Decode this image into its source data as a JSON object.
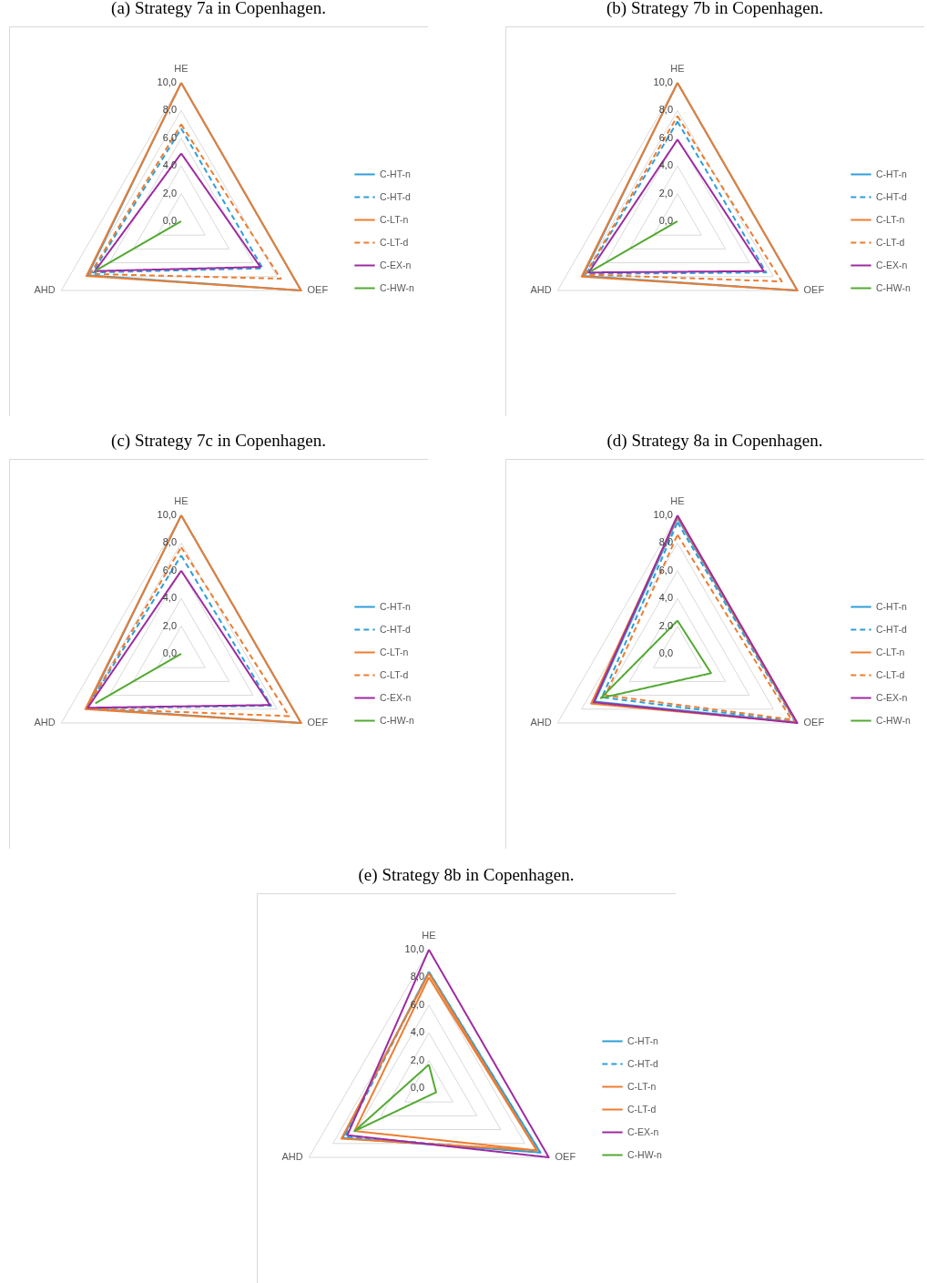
{
  "chart_data": [
    {
      "type": "radar",
      "title": "(a) Strategy 7a in Copenhagen.",
      "categories": [
        "HE",
        "OEF",
        "AHD"
      ],
      "ylim": [
        0,
        10
      ],
      "yticks": [
        {
          "value": 0,
          "label": "0,0"
        },
        {
          "value": 2,
          "label": "2,0"
        },
        {
          "value": 4,
          "label": "4,0"
        },
        {
          "value": 6,
          "label": "6,0"
        },
        {
          "value": 8,
          "label": "8,0"
        },
        {
          "value": 10,
          "label": "10,0"
        }
      ],
      "grid": true,
      "legend": "right",
      "series": [
        {
          "name": "C-HT-n",
          "color": "#2e9fd8",
          "line_style": "solid",
          "values": [
            10,
            10,
            7.8
          ]
        },
        {
          "name": "C-HT-d",
          "color": "#2e9fd8",
          "line_style": "dashed",
          "values": [
            6.7,
            6.8,
            7.4
          ]
        },
        {
          "name": "C-LT-n",
          "color": "#ed7d31",
          "line_style": "solid",
          "values": [
            10,
            10,
            7.9
          ]
        },
        {
          "name": "C-LT-d",
          "color": "#ed7d31",
          "line_style": "dashed",
          "values": [
            7.0,
            8.3,
            7.6
          ]
        },
        {
          "name": "C-EX-n",
          "color": "#9e2ba0",
          "line_style": "solid",
          "values": [
            4.9,
            6.6,
            7.2
          ]
        },
        {
          "name": "C-HW-n",
          "color": "#53a933",
          "line_style": "solid",
          "values": [
            0,
            0,
            7.1
          ]
        }
      ]
    },
    {
      "type": "radar",
      "title": "(b) Strategy 7b in Copenhagen.",
      "categories": [
        "HE",
        "OEF",
        "AHD"
      ],
      "ylim": [
        0,
        10
      ],
      "yticks": [
        {
          "value": 0,
          "label": "0,0"
        },
        {
          "value": 2,
          "label": "2,0"
        },
        {
          "value": 4,
          "label": "4,0"
        },
        {
          "value": 6,
          "label": "6,0"
        },
        {
          "value": 8,
          "label": "8,0"
        },
        {
          "value": 10,
          "label": "10,0"
        }
      ],
      "grid": true,
      "legend": "right",
      "series": [
        {
          "name": "C-HT-n",
          "color": "#2e9fd8",
          "line_style": "solid",
          "values": [
            10,
            10,
            7.9
          ]
        },
        {
          "name": "C-HT-d",
          "color": "#2e9fd8",
          "line_style": "dashed",
          "values": [
            7.2,
            7.4,
            7.6
          ]
        },
        {
          "name": "C-LT-n",
          "color": "#ed7d31",
          "line_style": "solid",
          "values": [
            10,
            10,
            8.0
          ]
        },
        {
          "name": "C-LT-d",
          "color": "#ed7d31",
          "line_style": "dashed",
          "values": [
            7.6,
            8.7,
            7.7
          ]
        },
        {
          "name": "C-EX-n",
          "color": "#9e2ba0",
          "line_style": "solid",
          "values": [
            5.9,
            7.2,
            7.4
          ]
        },
        {
          "name": "C-HW-n",
          "color": "#53a933",
          "line_style": "solid",
          "values": [
            0,
            0,
            7.2
          ]
        }
      ]
    },
    {
      "type": "radar",
      "title": "(c) Strategy 7c in Copenhagen.",
      "categories": [
        "HE",
        "OEF",
        "AHD"
      ],
      "ylim": [
        0,
        10
      ],
      "yticks": [
        {
          "value": 0,
          "label": "0,0"
        },
        {
          "value": 2,
          "label": "2,0"
        },
        {
          "value": 4,
          "label": "4,0"
        },
        {
          "value": 6,
          "label": "6,0"
        },
        {
          "value": 8,
          "label": "8,0"
        },
        {
          "value": 10,
          "label": "10,0"
        }
      ],
      "grid": true,
      "legend": "right",
      "series": [
        {
          "name": "C-HT-n",
          "color": "#2e9fd8",
          "line_style": "solid",
          "values": [
            10,
            10,
            7.9
          ]
        },
        {
          "name": "C-HT-d",
          "color": "#2e9fd8",
          "line_style": "dashed",
          "values": [
            7.1,
            7.5,
            7.9
          ]
        },
        {
          "name": "C-LT-n",
          "color": "#ed7d31",
          "line_style": "solid",
          "values": [
            10,
            10,
            8.0
          ]
        },
        {
          "name": "C-LT-d",
          "color": "#ed7d31",
          "line_style": "dashed",
          "values": [
            7.7,
            9.0,
            7.9
          ]
        },
        {
          "name": "C-EX-n",
          "color": "#9e2ba0",
          "line_style": "solid",
          "values": [
            6.0,
            7.4,
            7.8
          ]
        },
        {
          "name": "C-HW-n",
          "color": "#53a933",
          "line_style": "solid",
          "values": [
            0,
            0,
            7.1
          ]
        }
      ]
    },
    {
      "type": "radar",
      "title": "(d) Strategy 8a in Copenhagen.",
      "categories": [
        "HE",
        "OEF",
        "AHD"
      ],
      "ylim": [
        0,
        10
      ],
      "yticks": [
        {
          "value": 0,
          "label": "0,0"
        },
        {
          "value": 2,
          "label": "2,0"
        },
        {
          "value": 4,
          "label": "4,0"
        },
        {
          "value": 6,
          "label": "6,0"
        },
        {
          "value": 8,
          "label": "8,0"
        },
        {
          "value": 10,
          "label": "10,0"
        }
      ],
      "grid": true,
      "legend": "right",
      "series": [
        {
          "name": "C-HT-n",
          "color": "#2e9fd8",
          "line_style": "solid",
          "values": [
            9.8,
            9.9,
            6.9
          ]
        },
        {
          "name": "C-HT-d",
          "color": "#2e9fd8",
          "line_style": "dashed",
          "values": [
            9.5,
            9.8,
            6.3
          ]
        },
        {
          "name": "C-LT-n",
          "color": "#ed7d31",
          "line_style": "solid",
          "values": [
            9.9,
            9.9,
            7.2
          ]
        },
        {
          "name": "C-LT-d",
          "color": "#ed7d31",
          "line_style": "dashed",
          "values": [
            8.6,
            9.5,
            6.0
          ]
        },
        {
          "name": "C-EX-n",
          "color": "#9e2ba0",
          "line_style": "solid",
          "values": [
            10,
            10,
            7.0
          ]
        },
        {
          "name": "C-HW-n",
          "color": "#53a933",
          "line_style": "solid",
          "values": [
            2.4,
            2.8,
            6.4
          ]
        }
      ]
    },
    {
      "type": "radar",
      "title": "(e) Strategy 8b in Copenhagen.",
      "categories": [
        "HE",
        "OEF",
        "AHD"
      ],
      "ylim": [
        0,
        10
      ],
      "yticks": [
        {
          "value": 0,
          "label": "0,0"
        },
        {
          "value": 2,
          "label": "2,0"
        },
        {
          "value": 4,
          "label": "4,0"
        },
        {
          "value": 6,
          "label": "6,0"
        },
        {
          "value": 8,
          "label": "8,0"
        },
        {
          "value": 10,
          "label": "10,0"
        }
      ],
      "grid": true,
      "legend": "right",
      "series": [
        {
          "name": "C-HT-n",
          "color": "#2e9fd8",
          "line_style": "solid",
          "values": [
            8.4,
            9.3,
            7.2
          ]
        },
        {
          "name": "C-HT-d",
          "color": "#2e9fd8",
          "line_style": "dashed",
          "values": [
            8.4,
            9.3,
            7.0
          ]
        },
        {
          "name": "C-LT-n",
          "color": "#ed7d31",
          "line_style": "solid",
          "values": [
            8.3,
            9.0,
            7.3
          ]
        },
        {
          "name": "C-LT-d",
          "color": "#ed7d31",
          "line_style": "solid",
          "values": [
            8.0,
            9.0,
            6.2
          ]
        },
        {
          "name": "C-EX-n",
          "color": "#9e2ba0",
          "line_style": "solid",
          "values": [
            10,
            10,
            6.8
          ]
        },
        {
          "name": "C-HW-n",
          "color": "#53a933",
          "line_style": "solid",
          "values": [
            1.7,
            0.6,
            6.2
          ]
        }
      ]
    }
  ]
}
